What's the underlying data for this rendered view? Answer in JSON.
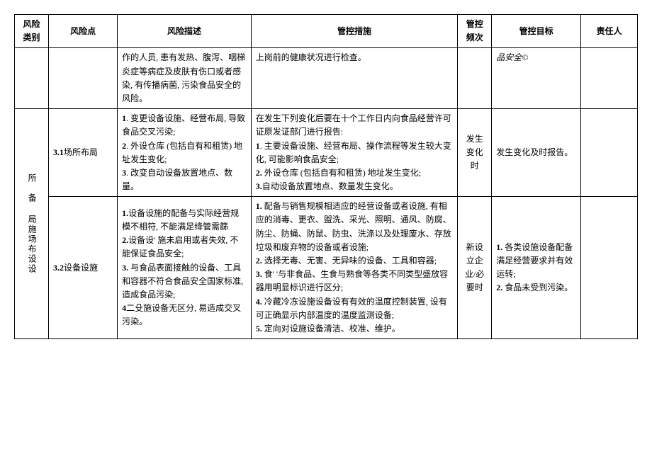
{
  "headers": {
    "c1": "风险类别",
    "c2": "风险点",
    "c3": "风险描述",
    "c4": "管控措施",
    "c5": "管控频次",
    "c6": "管控目标",
    "c7": "责任人"
  },
  "row0": {
    "desc": "作的人员, 患有发热、腹泻、咽梯炎症等病症及皮肤有伤口或者感染, 有传播病菌, 污染食品安全的风险。",
    "measure": "上岗前的健康状况进行检查。",
    "target": "品安全©"
  },
  "catA": "所　备\n局施场布设设",
  "row31": {
    "point_no": "3.1",
    "point": "场所布局",
    "desc_1": "1",
    "desc_1t": ". 变更设备设施、经营布局, 导致食品交叉污染;",
    "desc_2": "2",
    "desc_2t": ". 外设仓库 (包括自有和租赁) 地址发生变化;",
    "desc_3": "3",
    "desc_3t": ". 改变自动设备放置地点、数量。",
    "meas_pre": "在发生下列变化后要在十个工作日内向食品经营许可证原发证部门进行报告:",
    "meas_1a": "1",
    "meas_1b": ". 主要设备设施、经营布局、操作流程等发生较大变化, 可能影响食品安全;",
    "meas_2a": "2.",
    "meas_2b": " 外设仓库 (包括自有和租赁) 地址发生变化;",
    "meas_3a": "3.",
    "meas_3b": "自动设备放置地点、数量发生变化。",
    "freq": "发生变化时",
    "target": "发生变化及时报告。"
  },
  "row32": {
    "point_no": "3.2",
    "point": "设备设施",
    "desc_1a": "1.",
    "desc_1b": "设备设施的配备与实际经营规模不相符, 不能满足绛管需篩",
    "desc_2a": "2.",
    "desc_2b": "设备设' 施未启用或者失效, 不能保证食品安全;",
    "desc_3a": "3.",
    "desc_3b": " 与食品表面接触的设备、工具和容器不符合食品安全国家标准, 造成食品污染;",
    "desc_4a": "4",
    "desc_4b": "二殳施设备无区分, 易造成交叉污染。",
    "meas_1a": "1.",
    "meas_1b": " 配备与销售规模相适应的经营设备或者设施, 有相应的消毒、更衣、盥洗、采光、照明、通风、防腐、防尘、防蝇、防鼠、防虫、洗涤以及处理废水、存放垃圾和废弃物的设备或者设施;",
    "meas_2a": "2.",
    "meas_2b": " 选择无毒、无害、无异味的设备、工具和容器;",
    "meas_3a": "3.",
    "meas_3b": " 食' '与非食品、生食与熟食等各类不同类型盛放容器用明显标识进行区分;",
    "meas_4a": "4.",
    "meas_4b": " 冷藏冷冻设施设备设有有效的温度控制装置, 设有可正确显示内部温度的温度监测设备;",
    "meas_5a": "5.",
    "meas_5b": " 定向对设施设备清洁、校准、维护。",
    "freq": "新设立企业/必要时",
    "target_1a": "1.",
    "target_1b": " 各类设施设备配备满足经营要求并有效运转;",
    "target_2a": "2.",
    "target_2b": " 食品未受到污染。"
  }
}
